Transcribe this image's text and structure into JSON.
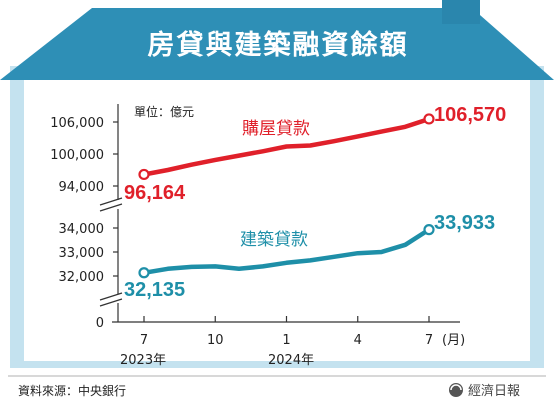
{
  "chart_data": {
    "type": "line",
    "title": "房貸與建築融資餘額",
    "unit_label": "單位：億元",
    "x": [
      "2023-07",
      "2023-08",
      "2023-09",
      "2023-10",
      "2023-11",
      "2023-12",
      "2024-01",
      "2024-02",
      "2024-03",
      "2024-04",
      "2024-05",
      "2024-06",
      "2024-07"
    ],
    "x_ticks": [
      "7",
      "10",
      "1",
      "4",
      "7"
    ],
    "x_unit": "(月)",
    "year_labels": [
      "2023年",
      "2024年"
    ],
    "y_ticks": [
      "0",
      "32,000",
      "33,000",
      "34,000",
      "94,000",
      "100,000",
      "106,000"
    ],
    "axis_break": "y between 34,000 and 94,000; y between 0 and 32,000",
    "series": [
      {
        "name": "購屋貸款",
        "color": "#e0202a",
        "values": [
          96164,
          97000,
          98000,
          98900,
          99700,
          100500,
          101400,
          101600,
          102400,
          103300,
          104200,
          105100,
          106570
        ],
        "start_label": "96,164",
        "end_label": "106,570"
      },
      {
        "name": "建築貸款",
        "color": "#1e8fa8",
        "values": [
          32135,
          32300,
          32380,
          32400,
          32300,
          32400,
          32550,
          32650,
          32800,
          32950,
          33000,
          33300,
          33933
        ],
        "start_label": "32,135",
        "end_label": "33,933"
      }
    ],
    "grid": false,
    "legend": "inline labels"
  },
  "footer": {
    "source": "資料來源：中央銀行",
    "brand": "經濟日報"
  },
  "colors": {
    "roof": "#2e8fb6",
    "frame": "#bfe0ee",
    "red_series": "#e0202a",
    "blue_series": "#1e8fa8"
  }
}
